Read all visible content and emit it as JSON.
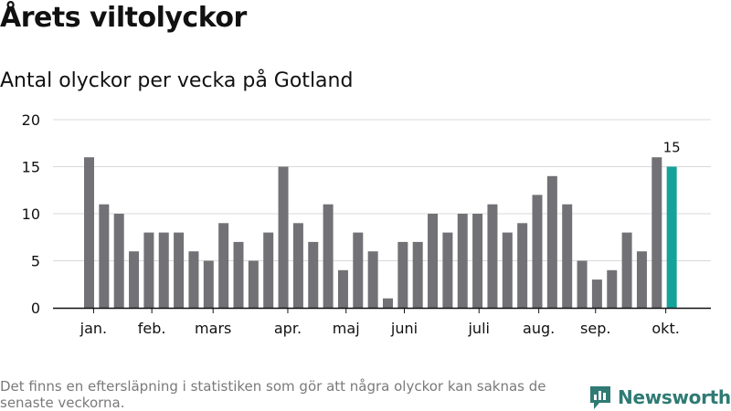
{
  "title": "Årets viltolyckor",
  "subtitle": "Antal olyckor per vecka på Gotland",
  "footnote": "Det finns en eftersläpning i statistiken som gör att några olyckor kan saknas de senaste veckorna.",
  "brand": "Newsworthy",
  "colors": {
    "bar": "#727175",
    "highlight": "#14a39a",
    "grid": "#d9d9d9",
    "axis": "#111111",
    "brand": "#2f7a74"
  },
  "chart_data": {
    "type": "bar",
    "title": "Antal olyckor per vecka på Gotland",
    "xlabel": "",
    "ylabel": "",
    "ylim": [
      0,
      20
    ],
    "yticks": [
      0,
      5,
      10,
      15,
      20
    ],
    "grid": true,
    "values": [
      16,
      11,
      10,
      6,
      8,
      8,
      8,
      6,
      5,
      9,
      7,
      5,
      8,
      15,
      9,
      7,
      11,
      4,
      8,
      6,
      1,
      7,
      7,
      10,
      8,
      10,
      10,
      11,
      8,
      9,
      12,
      14,
      11,
      5,
      3,
      4,
      8,
      6,
      16,
      15
    ],
    "highlight_index": 39,
    "highlight_label": "15",
    "month_labels": [
      {
        "label": "jan.",
        "bar_index": 0.3
      },
      {
        "label": "feb.",
        "bar_index": 4.2
      },
      {
        "label": "mars",
        "bar_index": 8.3
      },
      {
        "label": "apr.",
        "bar_index": 13.3
      },
      {
        "label": "maj",
        "bar_index": 17.2
      },
      {
        "label": "juni",
        "bar_index": 21.1
      },
      {
        "label": "juli",
        "bar_index": 26.1
      },
      {
        "label": "aug.",
        "bar_index": 30.1
      },
      {
        "label": "sep.",
        "bar_index": 33.9
      },
      {
        "label": "okt.",
        "bar_index": 38.6
      }
    ]
  }
}
